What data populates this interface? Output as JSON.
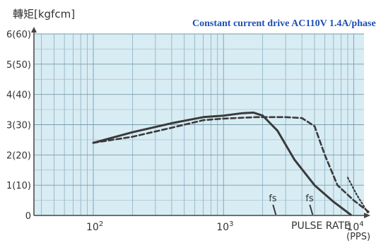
{
  "chart_data": {
    "type": "line",
    "title": "Constant current drive  AC110V 1.4A/phase",
    "ylabel": "轉矩[kgfcm]",
    "xlabel": "PULSE RATE",
    "xunit": "(PPS)",
    "x_scale": "log",
    "xlim": [
      35,
      12000
    ],
    "ylim": [
      0,
      6
    ],
    "grid": true,
    "y_ticks": [
      {
        "value": 6,
        "label": "6(60)"
      },
      {
        "value": 5,
        "label": "5(50)"
      },
      {
        "value": 4,
        "label": "4(40)"
      },
      {
        "value": 3,
        "label": "3(30)"
      },
      {
        "value": 2,
        "label": "2(20)"
      },
      {
        "value": 1,
        "label": "1(10)"
      },
      {
        "value": 0,
        "label": "0"
      }
    ],
    "x_ticks": [
      {
        "value": 100,
        "base": "10",
        "exp": "2"
      },
      {
        "value": 1000,
        "base": "10",
        "exp": "3"
      },
      {
        "value": 10000,
        "base": "10",
        "exp": "4"
      }
    ],
    "series": [
      {
        "style": "solid",
        "points": [
          [
            100,
            2.4
          ],
          [
            200,
            2.75
          ],
          [
            400,
            3.05
          ],
          [
            700,
            3.25
          ],
          [
            1000,
            3.3
          ],
          [
            1400,
            3.38
          ],
          [
            1700,
            3.4
          ],
          [
            2000,
            3.3
          ],
          [
            2600,
            2.8
          ],
          [
            3500,
            1.85
          ],
          [
            5000,
            1.0
          ],
          [
            7000,
            0.45
          ],
          [
            9500,
            0.02
          ]
        ]
      },
      {
        "style": "dashed",
        "points": [
          [
            100,
            2.4
          ],
          [
            200,
            2.6
          ],
          [
            400,
            2.9
          ],
          [
            700,
            3.15
          ],
          [
            1000,
            3.2
          ],
          [
            1800,
            3.25
          ],
          [
            3000,
            3.25
          ],
          [
            4000,
            3.22
          ],
          [
            5000,
            2.95
          ],
          [
            6000,
            2.0
          ],
          [
            7500,
            1.0
          ],
          [
            10000,
            0.5
          ],
          [
            13000,
            0.12
          ]
        ]
      },
      {
        "style": "dotted",
        "points": [
          [
            9000,
            1.25
          ],
          [
            10500,
            0.7
          ],
          [
            13000,
            0.05
          ]
        ]
      }
    ],
    "annotations": [
      {
        "text": "fs",
        "x": 2400,
        "y": 0.4
      },
      {
        "text": "fs",
        "x": 4600,
        "y": 0.4
      }
    ]
  }
}
